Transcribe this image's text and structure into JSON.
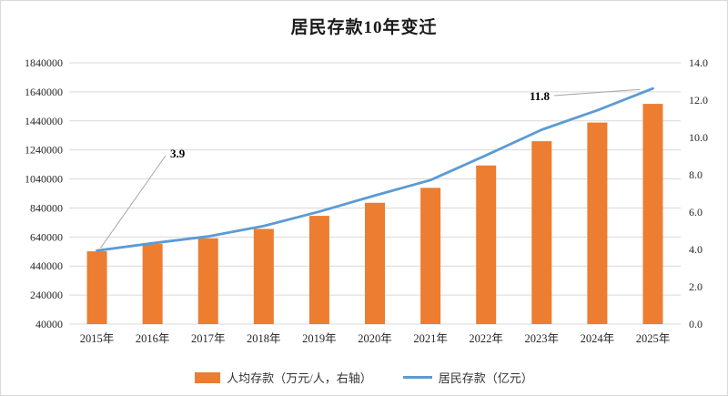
{
  "chart_data": {
    "type": "bar",
    "combo": "bar+line",
    "title": "居民存款10年变迁",
    "categories": [
      "2015年",
      "2016年",
      "2017年",
      "2018年",
      "2019年",
      "2020年",
      "2021年",
      "2022年",
      "2023年",
      "2024年",
      "2025年"
    ],
    "series": [
      {
        "name": "人均存款（万元/人，右轴）",
        "type": "bar",
        "axis": "right",
        "color": "#ED7D31",
        "values": [
          3.9,
          4.3,
          4.6,
          5.1,
          5.8,
          6.5,
          7.3,
          8.5,
          9.8,
          10.8,
          11.8
        ]
      },
      {
        "name": "居民存款（亿元）",
        "type": "line",
        "axis": "left",
        "color": "#5B9BD5",
        "values": [
          546000,
          597000,
          644000,
          716000,
          815000,
          926000,
          1032000,
          1203000,
          1379000,
          1513000,
          1663000
        ]
      }
    ],
    "left_axis": {
      "min": 40000,
      "max": 1840000,
      "step": 200000,
      "tick_labels": [
        "40000",
        "240000",
        "440000",
        "640000",
        "840000",
        "1040000",
        "1240000",
        "1440000",
        "1640000",
        "1840000"
      ]
    },
    "right_axis": {
      "min": 0,
      "max": 14,
      "step": 2,
      "tick_labels": [
        "0.0",
        "2.0",
        "4.0",
        "6.0",
        "8.0",
        "10.0",
        "12.0",
        "14.0"
      ]
    },
    "annotations": [
      {
        "text": "3.9",
        "category": "2015年"
      },
      {
        "text": "11.8",
        "category": "2025年"
      }
    ],
    "grid": true,
    "legend_position": "bottom",
    "colors": {
      "grid": "#d9d9d9",
      "tick_text": "#262626",
      "leader": "#a6a6a6",
      "annotation_text": "#000000"
    }
  }
}
